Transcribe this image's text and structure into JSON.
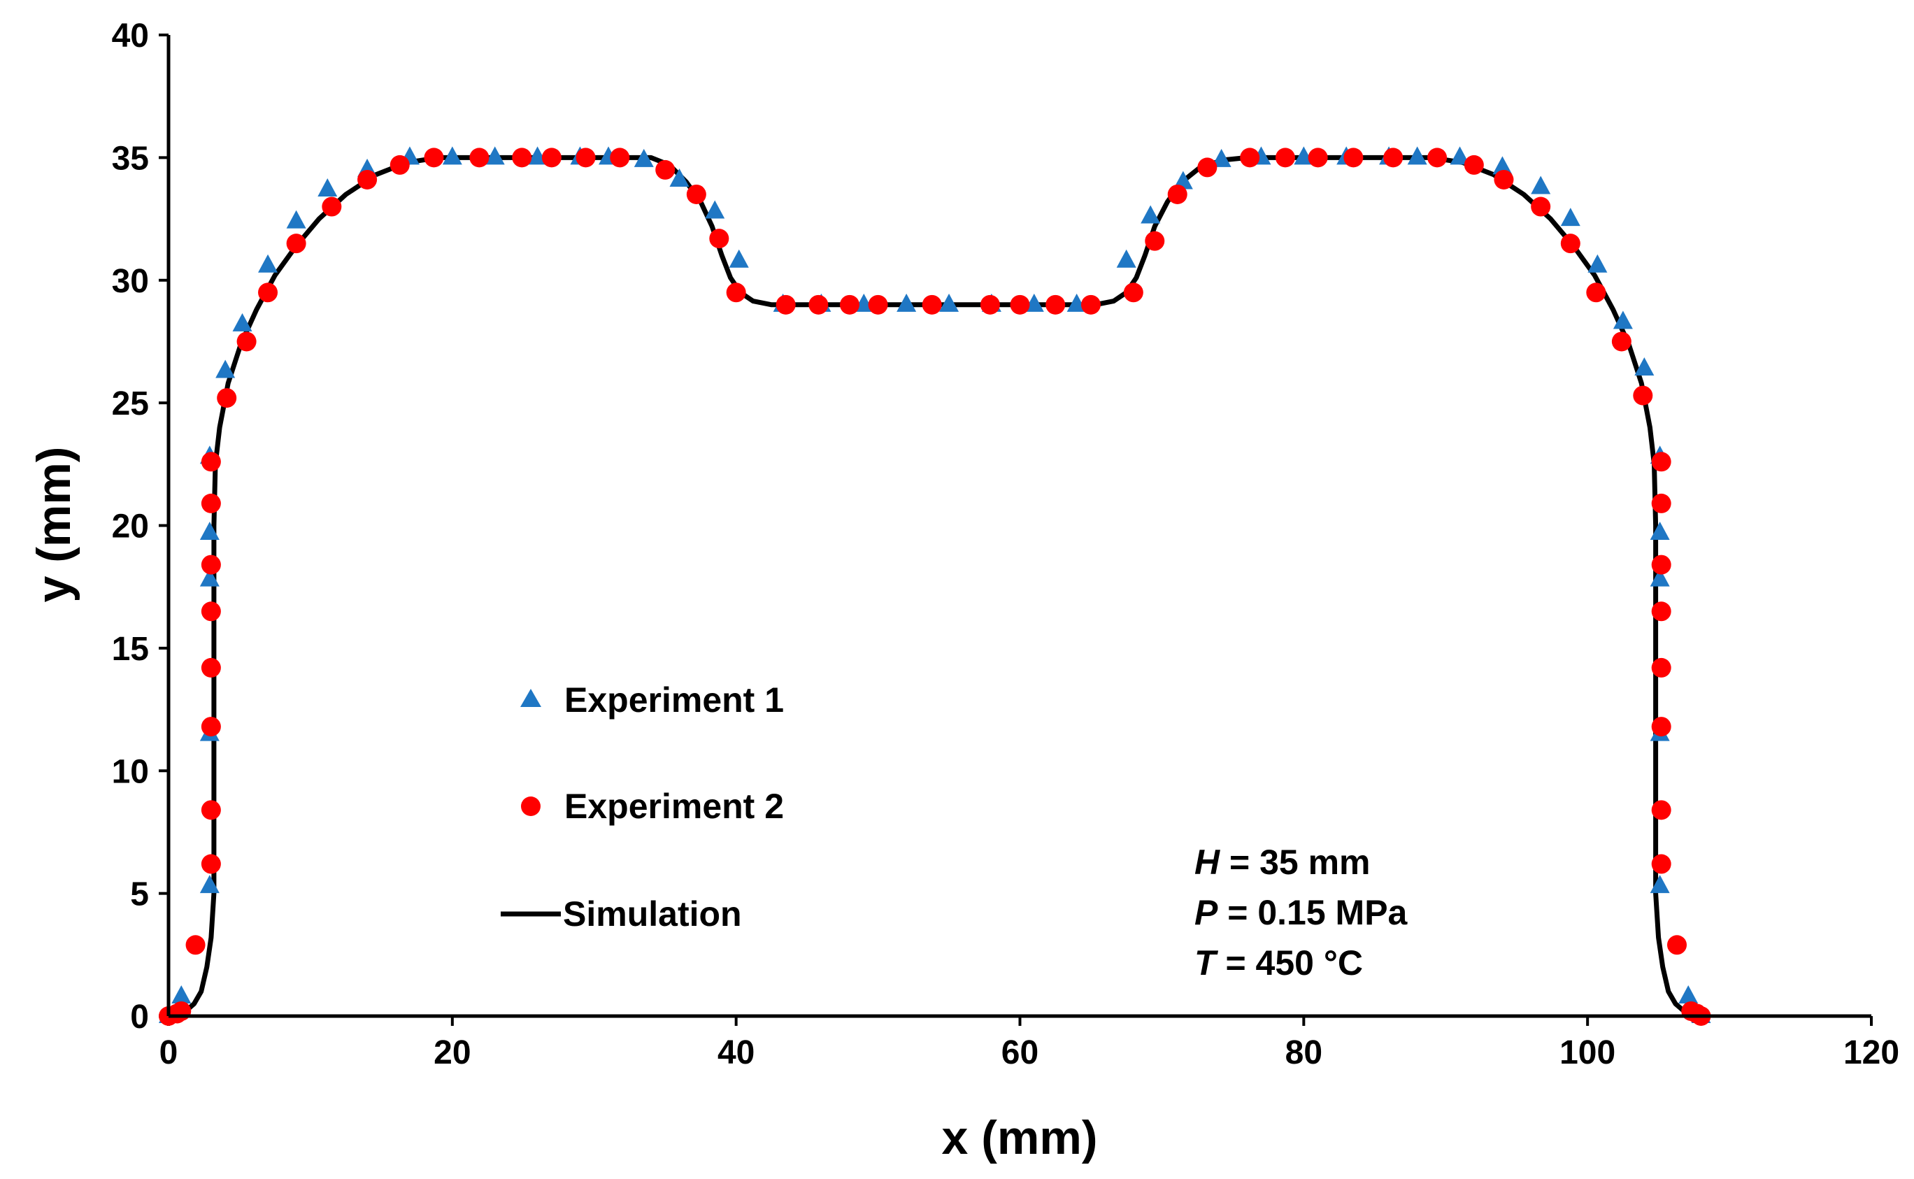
{
  "chart_data": {
    "type": "scatter",
    "title": "",
    "xlabel": "x (mm)",
    "ylabel": "y (mm)",
    "xlim": [
      0,
      120
    ],
    "ylim": [
      0,
      40
    ],
    "xticks": [
      0,
      20,
      40,
      60,
      80,
      100,
      120
    ],
    "yticks": [
      0,
      5,
      10,
      15,
      20,
      25,
      30,
      35,
      40
    ],
    "grid": false,
    "legend_position": "center-left",
    "annotations": [
      {
        "var": "H",
        "text": " = 35 mm"
      },
      {
        "var": "P",
        "text": " = 0.15 MPa"
      },
      {
        "var": "T",
        "text": " = 450 °C"
      }
    ],
    "series": [
      {
        "name": "Experiment 1",
        "marker": "triangle",
        "color": "#1F77C4",
        "points": [
          [
            0.0,
            0.0
          ],
          [
            0.9,
            0.8
          ],
          [
            2.9,
            5.3
          ],
          [
            2.9,
            11.5
          ],
          [
            2.9,
            17.8
          ],
          [
            2.9,
            19.7
          ],
          [
            2.9,
            22.8
          ],
          [
            4.0,
            26.3
          ],
          [
            5.2,
            28.2
          ],
          [
            7.0,
            30.6
          ],
          [
            9.0,
            32.4
          ],
          [
            11.2,
            33.7
          ],
          [
            14.0,
            34.5
          ],
          [
            17.0,
            35.0
          ],
          [
            20.0,
            35.0
          ],
          [
            23.0,
            35.0
          ],
          [
            26.0,
            35.0
          ],
          [
            29.0,
            35.0
          ],
          [
            31.0,
            35.0
          ],
          [
            33.5,
            34.9
          ],
          [
            36.0,
            34.1
          ],
          [
            38.5,
            32.8
          ],
          [
            40.2,
            30.8
          ],
          [
            43.3,
            29.0
          ],
          [
            46.0,
            29.0
          ],
          [
            49.0,
            29.0
          ],
          [
            52.0,
            29.0
          ],
          [
            55.0,
            29.0
          ],
          [
            58.0,
            29.0
          ],
          [
            61.0,
            29.0
          ],
          [
            64.0,
            29.0
          ],
          [
            67.5,
            30.8
          ],
          [
            69.2,
            32.6
          ],
          [
            71.5,
            34.0
          ],
          [
            74.2,
            34.9
          ],
          [
            77.0,
            35.0
          ],
          [
            80.0,
            35.0
          ],
          [
            83.0,
            35.0
          ],
          [
            86.0,
            35.0
          ],
          [
            88.0,
            35.0
          ],
          [
            91.0,
            35.0
          ],
          [
            94.0,
            34.6
          ],
          [
            96.7,
            33.8
          ],
          [
            98.8,
            32.5
          ],
          [
            100.7,
            30.6
          ],
          [
            102.5,
            28.3
          ],
          [
            104.0,
            26.4
          ],
          [
            105.1,
            22.8
          ],
          [
            105.1,
            19.7
          ],
          [
            105.1,
            17.8
          ],
          [
            105.1,
            11.5
          ],
          [
            105.1,
            5.3
          ],
          [
            107.1,
            0.8
          ],
          [
            108.0,
            0.0
          ]
        ]
      },
      {
        "name": "Experiment 2",
        "marker": "circle",
        "color": "#FF0000",
        "points": [
          [
            0.0,
            0.0
          ],
          [
            0.6,
            0.1
          ],
          [
            0.9,
            0.2
          ],
          [
            1.9,
            2.9
          ],
          [
            3.0,
            6.2
          ],
          [
            3.0,
            8.4
          ],
          [
            3.0,
            11.8
          ],
          [
            3.0,
            14.2
          ],
          [
            3.0,
            16.5
          ],
          [
            3.0,
            18.4
          ],
          [
            3.0,
            20.9
          ],
          [
            3.0,
            22.6
          ],
          [
            4.1,
            25.2
          ],
          [
            5.5,
            27.5
          ],
          [
            7.0,
            29.5
          ],
          [
            9.0,
            31.5
          ],
          [
            11.5,
            33.0
          ],
          [
            14.0,
            34.1
          ],
          [
            16.3,
            34.7
          ],
          [
            18.7,
            35.0
          ],
          [
            21.9,
            35.0
          ],
          [
            24.9,
            35.0
          ],
          [
            27.0,
            35.0
          ],
          [
            29.4,
            35.0
          ],
          [
            31.8,
            35.0
          ],
          [
            35.0,
            34.5
          ],
          [
            37.2,
            33.5
          ],
          [
            38.8,
            31.7
          ],
          [
            40.0,
            29.5
          ],
          [
            43.5,
            29.0
          ],
          [
            45.8,
            29.0
          ],
          [
            48.0,
            29.0
          ],
          [
            50.0,
            29.0
          ],
          [
            53.8,
            29.0
          ],
          [
            57.9,
            29.0
          ],
          [
            60.0,
            29.0
          ],
          [
            62.5,
            29.0
          ],
          [
            65.0,
            29.0
          ],
          [
            68.0,
            29.5
          ],
          [
            69.5,
            31.6
          ],
          [
            71.1,
            33.5
          ],
          [
            73.2,
            34.6
          ],
          [
            76.2,
            35.0
          ],
          [
            78.7,
            35.0
          ],
          [
            81.0,
            35.0
          ],
          [
            83.5,
            35.0
          ],
          [
            86.3,
            35.0
          ],
          [
            89.4,
            35.0
          ],
          [
            92.0,
            34.7
          ],
          [
            94.1,
            34.1
          ],
          [
            96.7,
            33.0
          ],
          [
            98.8,
            31.5
          ],
          [
            100.6,
            29.5
          ],
          [
            102.4,
            27.5
          ],
          [
            103.9,
            25.3
          ],
          [
            105.2,
            22.6
          ],
          [
            105.2,
            20.9
          ],
          [
            105.2,
            18.4
          ],
          [
            105.2,
            16.5
          ],
          [
            105.2,
            14.2
          ],
          [
            105.2,
            11.8
          ],
          [
            105.2,
            8.4
          ],
          [
            105.2,
            6.2
          ],
          [
            106.3,
            2.9
          ],
          [
            107.3,
            0.2
          ],
          [
            107.7,
            0.1
          ],
          [
            108.0,
            0.0
          ]
        ]
      },
      {
        "name": "Simulation",
        "marker": "line",
        "color": "#000000",
        "points": [
          [
            0.0,
            0.0
          ],
          [
            0.5,
            0.05
          ],
          [
            1.2,
            0.2
          ],
          [
            1.8,
            0.5
          ],
          [
            2.3,
            1.0
          ],
          [
            2.7,
            2.0
          ],
          [
            3.0,
            3.2
          ],
          [
            3.2,
            5.0
          ],
          [
            3.2,
            10.0
          ],
          [
            3.2,
            15.0
          ],
          [
            3.2,
            20.0
          ],
          [
            3.3,
            22.5
          ],
          [
            3.6,
            24.0
          ],
          [
            4.2,
            25.8
          ],
          [
            5.1,
            27.4
          ],
          [
            6.2,
            28.8
          ],
          [
            7.5,
            30.2
          ],
          [
            9.0,
            31.4
          ],
          [
            10.6,
            32.5
          ],
          [
            12.5,
            33.5
          ],
          [
            14.6,
            34.3
          ],
          [
            16.8,
            34.8
          ],
          [
            19.0,
            35.0
          ],
          [
            34.0,
            35.0
          ],
          [
            35.3,
            34.7
          ],
          [
            36.5,
            34.0
          ],
          [
            37.5,
            33.2
          ],
          [
            38.3,
            32.2
          ],
          [
            39.0,
            31.0
          ],
          [
            39.6,
            30.1
          ],
          [
            40.3,
            29.5
          ],
          [
            41.2,
            29.15
          ],
          [
            42.5,
            29.0
          ],
          [
            65.3,
            29.0
          ],
          [
            66.6,
            29.15
          ],
          [
            67.5,
            29.5
          ],
          [
            68.2,
            30.1
          ],
          [
            68.8,
            31.0
          ],
          [
            69.5,
            32.2
          ],
          [
            70.4,
            33.2
          ],
          [
            71.4,
            34.0
          ],
          [
            72.7,
            34.6
          ],
          [
            74.3,
            34.9
          ],
          [
            76.0,
            35.0
          ],
          [
            89.0,
            35.0
          ],
          [
            91.2,
            34.8
          ],
          [
            93.4,
            34.3
          ],
          [
            95.5,
            33.5
          ],
          [
            97.4,
            32.5
          ],
          [
            99.0,
            31.4
          ],
          [
            100.5,
            30.2
          ],
          [
            101.8,
            28.8
          ],
          [
            102.9,
            27.4
          ],
          [
            103.8,
            25.8
          ],
          [
            104.4,
            24.0
          ],
          [
            104.7,
            22.5
          ],
          [
            104.8,
            20.0
          ],
          [
            104.8,
            15.0
          ],
          [
            104.8,
            10.0
          ],
          [
            104.8,
            5.0
          ],
          [
            105.0,
            3.2
          ],
          [
            105.3,
            2.0
          ],
          [
            105.7,
            1.0
          ],
          [
            106.2,
            0.5
          ],
          [
            106.8,
            0.2
          ],
          [
            107.5,
            0.05
          ],
          [
            108.0,
            0.0
          ]
        ]
      }
    ]
  }
}
